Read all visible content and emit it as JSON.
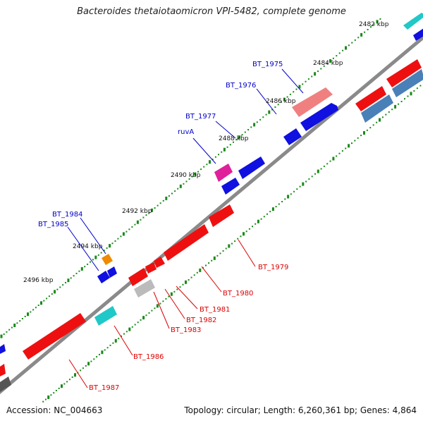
{
  "title": "Bacteroides thetaiotaomicron VPI-5482, complete genome",
  "footer": {
    "accession": "Accession: NC_004663",
    "summary": "Topology: circular; Length: 6,260,361 bp; Genes: 4,864"
  },
  "ticks": [
    {
      "label": "2482 kbp"
    },
    {
      "label": "2484 kbp"
    },
    {
      "label": "2486 kbp"
    },
    {
      "label": "2488 kbp"
    },
    {
      "label": "2490 kbp"
    },
    {
      "label": "2492 kbp"
    },
    {
      "label": "2494 kbp"
    },
    {
      "label": "2496 kbp"
    }
  ],
  "gene_labels": [
    {
      "name": "BT_1975",
      "color": "#0000cc"
    },
    {
      "name": "BT_1976",
      "color": "#0000cc"
    },
    {
      "name": "BT_1977",
      "color": "#0000cc"
    },
    {
      "name": "ruvA",
      "color": "#0000cc"
    },
    {
      "name": "BT_1984",
      "color": "#0000cc"
    },
    {
      "name": "BT_1985",
      "color": "#0000cc"
    },
    {
      "name": "BT_1979",
      "color": "#dd0000"
    },
    {
      "name": "BT_1980",
      "color": "#dd0000"
    },
    {
      "name": "BT_1981",
      "color": "#dd0000"
    },
    {
      "name": "BT_1982",
      "color": "#dd0000"
    },
    {
      "name": "BT_1983",
      "color": "#dd0000"
    },
    {
      "name": "BT_1986",
      "color": "#dd0000"
    },
    {
      "name": "BT_1987",
      "color": "#dd0000"
    }
  ],
  "colors": {
    "backbone": "#8a8a8a",
    "tick_dots": "#1a8a1a",
    "blue_gene": "#1010e0",
    "red_gene": "#ee1010",
    "pink_gene": "#f08080",
    "magenta_gene": "#e0209a",
    "orange_gene": "#f08a00",
    "cyan_gene": "#20c8c8",
    "steel_gene": "#4a80b8",
    "gray_gene": "#bbbbbb"
  }
}
